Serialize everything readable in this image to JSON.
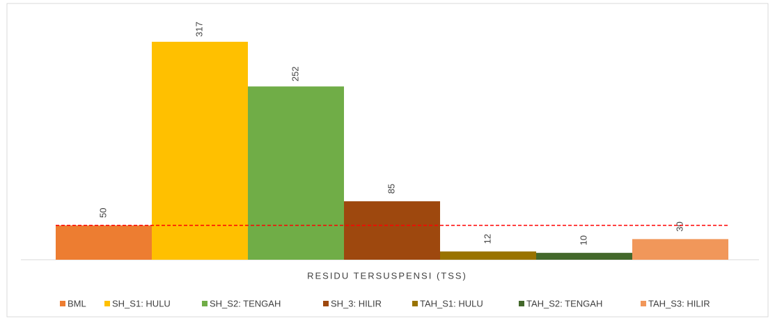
{
  "chart_data": {
    "type": "bar",
    "categories": [
      "RESIDU TERSUSPENSI (TSS)"
    ],
    "series": [
      {
        "name": "BML",
        "color": "#ed7d31",
        "values": [
          50
        ]
      },
      {
        "name": "SH_S1: HULU",
        "color": "#ffc000",
        "values": [
          317
        ]
      },
      {
        "name": "SH_S2: TENGAH",
        "color": "#70ad47",
        "values": [
          252
        ]
      },
      {
        "name": "SH_3: HILIR",
        "color": "#9e480e",
        "values": [
          85
        ]
      },
      {
        "name": "TAH_S1: HULU",
        "color": "#997300",
        "values": [
          12
        ]
      },
      {
        "name": "TAH_S2: TENGAH",
        "color": "#43682b",
        "values": [
          10
        ]
      },
      {
        "name": "TAH_S3: HILIR",
        "color": "#f1975a",
        "values": [
          30
        ]
      }
    ],
    "ylim": [
      0,
      350
    ],
    "reference_line": {
      "value": 50,
      "color": "#ff0000"
    },
    "legend": "bottom"
  }
}
